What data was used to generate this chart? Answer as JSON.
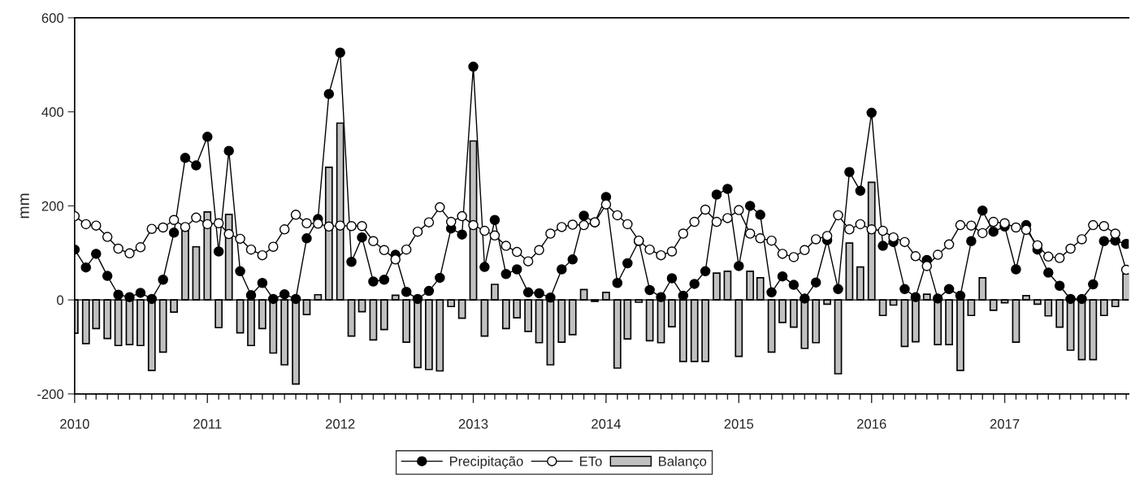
{
  "chart_data": {
    "type": "line",
    "ylabel": "mm",
    "x": [
      "2010-01",
      "2010-02",
      "2010-03",
      "2010-04",
      "2010-05",
      "2010-06",
      "2010-07",
      "2010-08",
      "2010-09",
      "2010-10",
      "2010-11",
      "2010-12",
      "2011-01",
      "2011-02",
      "2011-03",
      "2011-04",
      "2011-05",
      "2011-06",
      "2011-07",
      "2011-08",
      "2011-09",
      "2011-10",
      "2011-11",
      "2011-12",
      "2012-01",
      "2012-02",
      "2012-03",
      "2012-04",
      "2012-05",
      "2012-06",
      "2012-07",
      "2012-08",
      "2012-09",
      "2012-10",
      "2012-11",
      "2012-12",
      "2013-01",
      "2013-02",
      "2013-03",
      "2013-04",
      "2013-05",
      "2013-06",
      "2013-07",
      "2013-08",
      "2013-09",
      "2013-10",
      "2013-11",
      "2013-12",
      "2014-01",
      "2014-02",
      "2014-03",
      "2014-04",
      "2014-05",
      "2014-06",
      "2014-07",
      "2014-08",
      "2014-09",
      "2014-10",
      "2014-11",
      "2014-12",
      "2015-01",
      "2015-02",
      "2015-03",
      "2015-04",
      "2015-05",
      "2015-06",
      "2015-07",
      "2015-08",
      "2015-09",
      "2015-10",
      "2015-11",
      "2015-12",
      "2016-01",
      "2016-02",
      "2016-03",
      "2016-04",
      "2016-05",
      "2016-06",
      "2016-07",
      "2016-08",
      "2016-09",
      "2016-10",
      "2016-11",
      "2016-12",
      "2017-01",
      "2017-02",
      "2017-03",
      "2017-04",
      "2017-05",
      "2017-06",
      "2017-07",
      "2017-08",
      "2017-09",
      "2017-10",
      "2017-11",
      "2017-12"
    ],
    "series": [
      {
        "name": "Precipitação",
        "color": "#000000",
        "values": [
          107,
          69,
          98,
          51,
          11,
          6,
          15,
          2,
          43,
          143,
          302,
          286,
          347,
          103,
          317,
          61,
          10,
          36,
          2,
          12,
          2,
          131,
          172,
          438,
          526,
          81,
          133,
          39,
          43,
          96,
          17,
          2,
          19,
          47,
          152,
          139,
          496,
          70,
          170,
          55,
          65,
          16,
          14,
          5,
          65,
          86,
          179,
          165,
          219,
          36,
          78,
          125,
          21,
          6,
          46,
          9,
          34,
          61,
          224,
          236,
          72,
          200,
          181,
          16,
          50,
          32,
          3,
          37,
          127,
          23,
          272,
          232,
          398,
          115,
          123,
          23,
          6,
          85,
          3,
          23,
          9,
          125,
          190,
          145,
          156,
          65,
          159,
          107,
          58,
          30,
          2,
          2,
          33,
          125,
          126,
          119
        ]
      },
      {
        "name": "ETo",
        "color": "#ffffff",
        "values": [
          178,
          161,
          158,
          134,
          109,
          99,
          112,
          151,
          154,
          170,
          155,
          175,
          161,
          163,
          140,
          130,
          107,
          95,
          113,
          150,
          181,
          163,
          162,
          156,
          158,
          157,
          157,
          125,
          106,
          86,
          107,
          145,
          165,
          197,
          166,
          178,
          159,
          147,
          137,
          115,
          102,
          82,
          106,
          141,
          155,
          160,
          159,
          165,
          203,
          180,
          161,
          126,
          107,
          95,
          103,
          141,
          166,
          192,
          166,
          174,
          191,
          141,
          131,
          126,
          98,
          91,
          106,
          129,
          136,
          180,
          150,
          161,
          150,
          147,
          133,
          123,
          93,
          72,
          96,
          118,
          159,
          158,
          142,
          166,
          163,
          154,
          149,
          116,
          92,
          89,
          109,
          129,
          159,
          157,
          141,
          64
        ]
      },
      {
        "name": "Balanço",
        "type": "bar",
        "color": "#c0c0c0",
        "values": [
          -71,
          -93,
          -61,
          -82,
          -97,
          -95,
          -97,
          -150,
          -111,
          -26,
          147,
          113,
          187,
          -59,
          182,
          -70,
          -97,
          -61,
          -113,
          -138,
          -179,
          -31,
          11,
          282,
          376,
          -77,
          -25,
          -85,
          -63,
          10,
          -90,
          -144,
          -148,
          -151,
          -14,
          -39,
          338,
          -77,
          33,
          -61,
          -38,
          -67,
          -91,
          -138,
          -90,
          -74,
          22,
          -3,
          16,
          -145,
          -83,
          -5,
          -87,
          -91,
          -57,
          -131,
          -131,
          -131,
          57,
          61,
          -120,
          61,
          47,
          -111,
          -48,
          -58,
          -103,
          -91,
          -9,
          -157,
          121,
          70,
          250,
          -33,
          -11,
          -99,
          -89,
          12,
          -95,
          -95,
          -150,
          -33,
          47,
          -22,
          -6,
          -90,
          9,
          -9,
          -34,
          -58,
          -107,
          -127,
          -127,
          -33,
          -14,
          55
        ]
      }
    ],
    "xlim": [
      "2010-01-01",
      "2017-12-08"
    ],
    "xticks": [
      "2010",
      "2011",
      "2012",
      "2013",
      "2014",
      "2015",
      "2016",
      "2017"
    ],
    "ylim": [
      -200,
      600
    ],
    "yticks": [
      -200,
      0,
      200,
      400,
      600
    ],
    "ref_lines": [
      {
        "axis": "y",
        "value": 0
      }
    ],
    "marker": "circle",
    "line_style": "solid",
    "grid": false,
    "legend": "bottom"
  }
}
